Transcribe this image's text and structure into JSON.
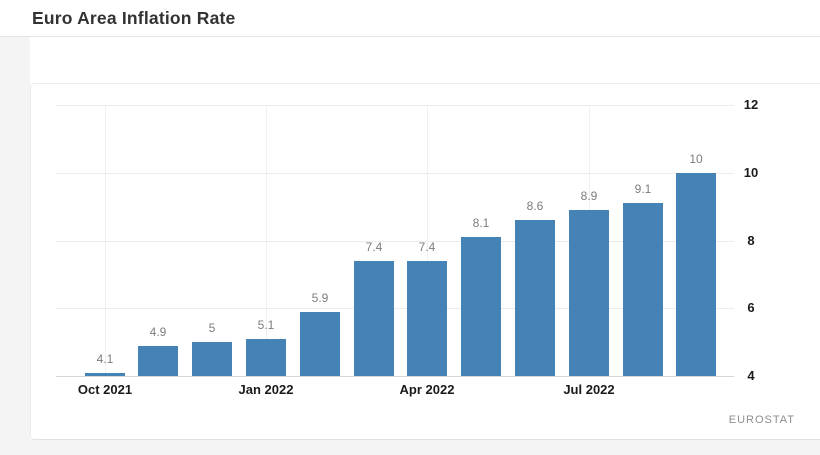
{
  "header": {
    "title": "Euro Area Inflation Rate"
  },
  "source": {
    "label": "EUROSTAT"
  },
  "chart_data": {
    "type": "bar",
    "title": "Euro Area Inflation Rate",
    "values": [
      4.1,
      4.9,
      5,
      5.1,
      5.9,
      7.4,
      7.4,
      8.1,
      8.6,
      8.9,
      9.1,
      10
    ],
    "value_labels": [
      "4.1",
      "4.9",
      "5",
      "5.1",
      "5.9",
      "7.4",
      "7.4",
      "8.1",
      "8.6",
      "8.9",
      "9.1",
      "10"
    ],
    "bar_count": 12,
    "x_tick_labels": [
      "Oct 2021",
      "Jan 2022",
      "Apr 2022",
      "Jul 2022"
    ],
    "x_tick_bar_indices": [
      0,
      3,
      6,
      9
    ],
    "y_ticks": [
      4,
      6,
      8,
      10,
      12
    ],
    "y_tick_labels": [
      "4",
      "6",
      "8",
      "10",
      "12"
    ],
    "ylim": [
      4,
      12
    ],
    "xlabel": "",
    "ylabel": "",
    "grid": true,
    "y_axis_side": "right",
    "legend": "none",
    "source": "EUROSTAT",
    "colors": {
      "bar": "#4583b6",
      "grid": "#ececec",
      "baseline": "#d5d5d5",
      "value_label": "#7d7d7d",
      "axis_label": "#1a1a1a",
      "source_label": "#8e8e8e"
    }
  }
}
